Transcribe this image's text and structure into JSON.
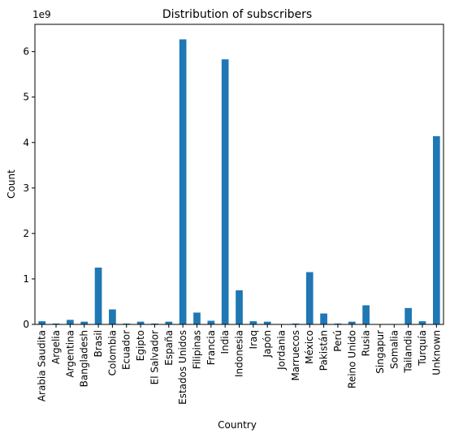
{
  "chart_data": {
    "type": "bar",
    "title": "Distribution of subscribers",
    "xlabel": "Country",
    "ylabel": "Count",
    "y_multiplier_label": "1e9",
    "ylim": [
      0,
      6.6
    ],
    "yticks": [
      0,
      1,
      2,
      3,
      4,
      5,
      6
    ],
    "bar_color": "#1f77b4",
    "grid": false,
    "legend": "none",
    "categories": [
      "Arabia Saudita",
      "Argelia",
      "Argentina",
      "Bangladesh",
      "Brasil",
      "Colombia",
      "Ecuador",
      "Egipto",
      "El Salvador",
      "España",
      "Estados Unidos",
      "Filipinas",
      "Francia",
      "India",
      "Indonesia",
      "Iraq",
      "Japón",
      "Jordania",
      "Marruecos",
      "México",
      "Pakistán",
      "Perú",
      "Reino Unido",
      "Rusia",
      "Singapur",
      "Somalia",
      "Tailandia",
      "Turquía",
      "Unknown"
    ],
    "values": [
      0.07,
      0.02,
      0.1,
      0.06,
      1.25,
      0.33,
      0.02,
      0.06,
      0.02,
      0.06,
      6.27,
      0.26,
      0.08,
      5.83,
      0.75,
      0.07,
      0.06,
      0.005,
      0.02,
      1.15,
      0.24,
      0.02,
      0.06,
      0.42,
      0.005,
      0.005,
      0.36,
      0.07,
      4.14
    ]
  }
}
